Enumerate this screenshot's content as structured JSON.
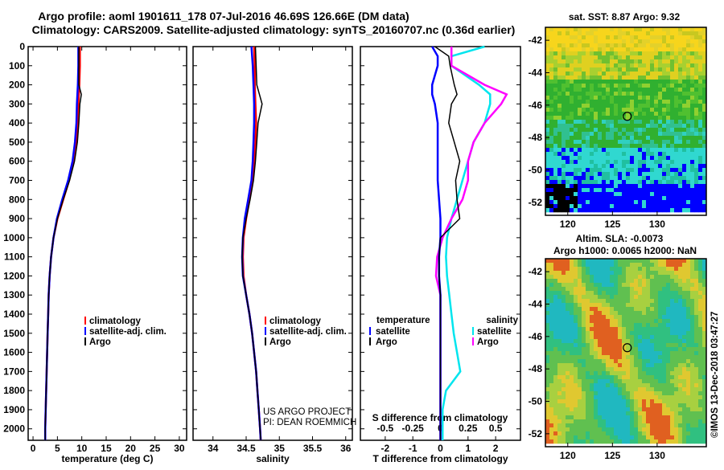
{
  "header": {
    "title_line1": "Argo profile: aoml 1901611_178 07-Jul-2016 46.69S 126.66E (DM data)",
    "title_line2": "Climatology: CARS2009. Satellite-adjusted climatology: synTS_20160707.nc (0.36d earlier)"
  },
  "colors": {
    "climatology": "#ff0000",
    "satellite_adj": "#0000ff",
    "argo": "#000000",
    "satellite_salinity": "#00e5ee",
    "argo_salinity": "#ff00ff"
  },
  "depth_ticks": [
    "0",
    "100",
    "200",
    "300",
    "400",
    "500",
    "600",
    "700",
    "800",
    "900",
    "1000",
    "1100",
    "1200",
    "1300",
    "1400",
    "1500",
    "1600",
    "1700",
    "1800",
    "1900",
    "2000"
  ],
  "chart_data": [
    {
      "type": "line",
      "xlabel": "temperature (deg C)",
      "ylabel": "",
      "xlim": [
        -1,
        31.5
      ],
      "ylim": [
        2060,
        0
      ],
      "xticks": [
        "0",
        "5",
        "10",
        "15",
        "20",
        "25",
        "30"
      ],
      "legend": [
        "climatology",
        "satellite-adj. clim.",
        "Argo"
      ],
      "depth": [
        0,
        100,
        200,
        250,
        300,
        400,
        500,
        600,
        700,
        800,
        900,
        1000,
        1100,
        1200,
        1300,
        1400,
        1500,
        1600,
        1700,
        1800,
        1900,
        2000,
        2060
      ],
      "series": [
        {
          "name": "climatology",
          "values": [
            9.6,
            9.6,
            9.5,
            9.4,
            9.3,
            9.2,
            8.9,
            8.3,
            7.4,
            6.2,
            5.0,
            4.2,
            3.7,
            3.4,
            3.2,
            3.1,
            3.0,
            2.9,
            2.8,
            2.7,
            2.6,
            2.5,
            2.5
          ]
        },
        {
          "name": "satellite-adj. clim.",
          "values": [
            9.3,
            9.3,
            9.2,
            9.1,
            9.0,
            8.9,
            8.6,
            8.1,
            7.2,
            6.0,
            4.9,
            4.2,
            3.7,
            3.4,
            3.2,
            3.1,
            3.0,
            2.9,
            2.8,
            2.7,
            2.6,
            2.5,
            2.5
          ]
        },
        {
          "name": "Argo",
          "values": [
            9.4,
            9.4,
            9.4,
            9.9,
            9.6,
            9.4,
            9.1,
            8.5,
            7.5,
            6.2,
            5.0,
            4.2,
            3.7,
            3.4,
            3.2,
            3.1,
            3.0,
            2.9,
            2.8,
            2.7,
            2.6,
            2.5,
            2.5
          ]
        }
      ]
    },
    {
      "type": "line",
      "xlabel": "salinity",
      "ylabel": "",
      "xlim": [
        33.7,
        36.1
      ],
      "ylim": [
        2060,
        0
      ],
      "xticks": [
        "34",
        "34.5",
        "35",
        "35.5",
        "36"
      ],
      "legend": [
        "climatology",
        "satellite-adj. clim.",
        "Argo"
      ],
      "depth": [
        0,
        100,
        200,
        300,
        400,
        500,
        600,
        700,
        800,
        900,
        1000,
        1100,
        1200,
        1300,
        1400,
        1500,
        1600,
        1700,
        1800,
        1900,
        2000,
        2060
      ],
      "series": [
        {
          "name": "climatology",
          "values": [
            34.62,
            34.63,
            34.63,
            34.64,
            34.65,
            34.64,
            34.62,
            34.6,
            34.55,
            34.5,
            34.46,
            34.45,
            34.46,
            34.5,
            34.55,
            34.59,
            34.62,
            34.65,
            34.67,
            34.69,
            34.71,
            34.72
          ]
        },
        {
          "name": "satellite-adj. clim.",
          "values": [
            34.58,
            34.6,
            34.61,
            34.62,
            34.62,
            34.61,
            34.6,
            34.58,
            34.53,
            34.48,
            34.45,
            34.44,
            34.45,
            34.5,
            34.55,
            34.59,
            34.62,
            34.65,
            34.67,
            34.69,
            34.71,
            34.72
          ]
        },
        {
          "name": "Argo",
          "values": [
            34.64,
            34.65,
            34.66,
            34.74,
            34.68,
            34.66,
            34.64,
            34.61,
            34.56,
            34.5,
            34.45,
            34.44,
            34.45,
            34.5,
            34.55,
            34.59,
            34.62,
            34.65,
            34.67,
            34.69,
            34.71,
            34.72
          ]
        }
      ],
      "annotation": [
        "US ARGO PROJECT",
        "PI: DEAN ROEMMICH"
      ]
    },
    {
      "type": "line",
      "xlabel": "T difference from climatology",
      "xlabel_top": "S difference from climatology",
      "ylabel": "",
      "xlim": [
        -2.9,
        2.9
      ],
      "ylim": [
        2060,
        0
      ],
      "xticks": [
        "-2",
        "-1",
        "0",
        "1",
        "2"
      ],
      "xticks_top": [
        "-0.5",
        "-0.25",
        "0",
        "0.25",
        "0.5"
      ],
      "legend_left_title": "temperature",
      "legend_right_title": "salinity",
      "legend": [
        "satellite",
        "Argo",
        "satellite",
        "Argo"
      ],
      "depth": [
        0,
        50,
        100,
        200,
        250,
        300,
        400,
        500,
        600,
        700,
        800,
        900,
        1000,
        1100,
        1200,
        1300,
        1400,
        1500,
        1600,
        1700,
        1800,
        1900,
        2000,
        2060
      ],
      "series": [
        {
          "name": "temperature satellite",
          "values": [
            -0.3,
            -0.1,
            -0.1,
            -0.3,
            -0.3,
            -0.2,
            -0.1,
            -0.1,
            -0.1,
            -0.1,
            -0.05,
            0,
            0,
            -0.05,
            -0.05,
            0,
            0,
            0,
            0,
            0,
            0,
            0,
            0,
            0
          ]
        },
        {
          "name": "temperature Argo",
          "values": [
            -0.2,
            0.3,
            0.35,
            0.5,
            0.6,
            0.4,
            0.3,
            0.5,
            0.7,
            0.55,
            0.6,
            0.7,
            0,
            -0.05,
            -0.05,
            0,
            0,
            0,
            0,
            0,
            0,
            0,
            0,
            0
          ]
        },
        {
          "name": "salinity satellite",
          "values": [
            0.4,
            0.1,
            0.1,
            0.35,
            0.45,
            0.45,
            0.4,
            0.3,
            0.25,
            0.2,
            0.15,
            0.1,
            0.06,
            0.05,
            0.06,
            0.08,
            0.1,
            0.12,
            0.15,
            0.18,
            0.05,
            0.02,
            0.02,
            0.02
          ]
        },
        {
          "name": "salinity Argo",
          "values": [
            0.1,
            0.1,
            0.1,
            0.4,
            0.6,
            0.55,
            0.4,
            0.3,
            0.25,
            0.25,
            0.2,
            0.1,
            0.02,
            -0.03,
            -0.04,
            0,
            0,
            0,
            0,
            0,
            0,
            0,
            0,
            0
          ]
        }
      ]
    },
    {
      "type": "heatmap",
      "title": "sat. SST: 8.87 Argo: 9.32",
      "xticks": [
        "120",
        "125",
        "130"
      ],
      "yticks": [
        "-42",
        "-44",
        "-46",
        "-48",
        "-50",
        "-52"
      ],
      "marker_lon": 126.66,
      "marker_lat": -46.69
    },
    {
      "type": "heatmap",
      "title_line1": "Altim. SLA: -0.0073",
      "title_line2": "Argo h1000: 0.0065 h2000: NaN",
      "xticks": [
        "120",
        "125",
        "130"
      ],
      "yticks": [
        "-42",
        "-44",
        "-46",
        "-48",
        "-50",
        "-52"
      ],
      "marker_lon": 126.66,
      "marker_lat": -46.69
    }
  ],
  "footer_stamp": "©IMOS 13-Dec-2018 03:47:27"
}
